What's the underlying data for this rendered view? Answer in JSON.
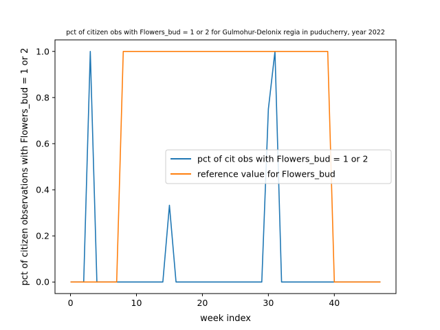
{
  "chart_data": {
    "type": "line",
    "title": "pct of citizen obs with Flowers_bud = 1 or 2 for Gulmohur-Delonix regia in puducherry, year 2022",
    "xlabel": "week index",
    "ylabel": "pct of citizen observations with Flowers_bud = 1 or 2",
    "xlim": [
      -2.35,
      49.35
    ],
    "ylim": [
      -0.05,
      1.05
    ],
    "xticks": [
      0,
      10,
      20,
      30,
      40
    ],
    "yticks": [
      0.0,
      0.2,
      0.4,
      0.6,
      0.8,
      1.0
    ],
    "xtick_labels": [
      "0",
      "10",
      "20",
      "30",
      "40"
    ],
    "ytick_labels": [
      "0.0",
      "0.2",
      "0.4",
      "0.6",
      "0.8",
      "1.0"
    ],
    "legend_position": "center-right",
    "grid": false,
    "series": [
      {
        "name": "pct of cit obs with Flowers_bud = 1 or 2",
        "color": "#1f77b4",
        "x": [
          0,
          1,
          2,
          3,
          4,
          5,
          6,
          7,
          8,
          9,
          10,
          11,
          12,
          13,
          14,
          15,
          16,
          17,
          18,
          19,
          20,
          21,
          22,
          23,
          24,
          25,
          26,
          27,
          28,
          29,
          30,
          31,
          32,
          33,
          34,
          35,
          36,
          37,
          38,
          39,
          40,
          41,
          42,
          43,
          44,
          45,
          46,
          47
        ],
        "y": [
          0,
          0,
          0,
          1.0,
          0,
          0,
          0,
          0,
          0,
          0,
          0,
          0,
          0,
          0,
          0,
          0.333,
          0,
          0,
          0,
          0,
          0,
          0,
          0,
          0,
          0,
          0,
          0,
          0,
          0,
          0,
          0.75,
          1.0,
          0,
          0,
          0,
          0,
          0,
          0,
          0,
          0,
          0,
          0,
          0,
          0,
          0,
          0,
          0,
          0
        ]
      },
      {
        "name": "reference value for Flowers_bud",
        "color": "#ff7f0e",
        "x": [
          0,
          1,
          2,
          3,
          4,
          5,
          6,
          7,
          8,
          9,
          10,
          11,
          12,
          13,
          14,
          15,
          16,
          17,
          18,
          19,
          20,
          21,
          22,
          23,
          24,
          25,
          26,
          27,
          28,
          29,
          30,
          31,
          32,
          33,
          34,
          35,
          36,
          37,
          38,
          39,
          40,
          41,
          42,
          43,
          44,
          45,
          46,
          47
        ],
        "y": [
          0,
          0,
          0,
          0,
          0,
          0,
          0,
          0,
          1,
          1,
          1,
          1,
          1,
          1,
          1,
          1,
          1,
          1,
          1,
          1,
          1,
          1,
          1,
          1,
          1,
          1,
          1,
          1,
          1,
          1,
          1,
          1,
          1,
          1,
          1,
          1,
          1,
          1,
          1,
          1,
          0,
          0,
          0,
          0,
          0,
          0,
          0,
          0
        ]
      }
    ]
  }
}
